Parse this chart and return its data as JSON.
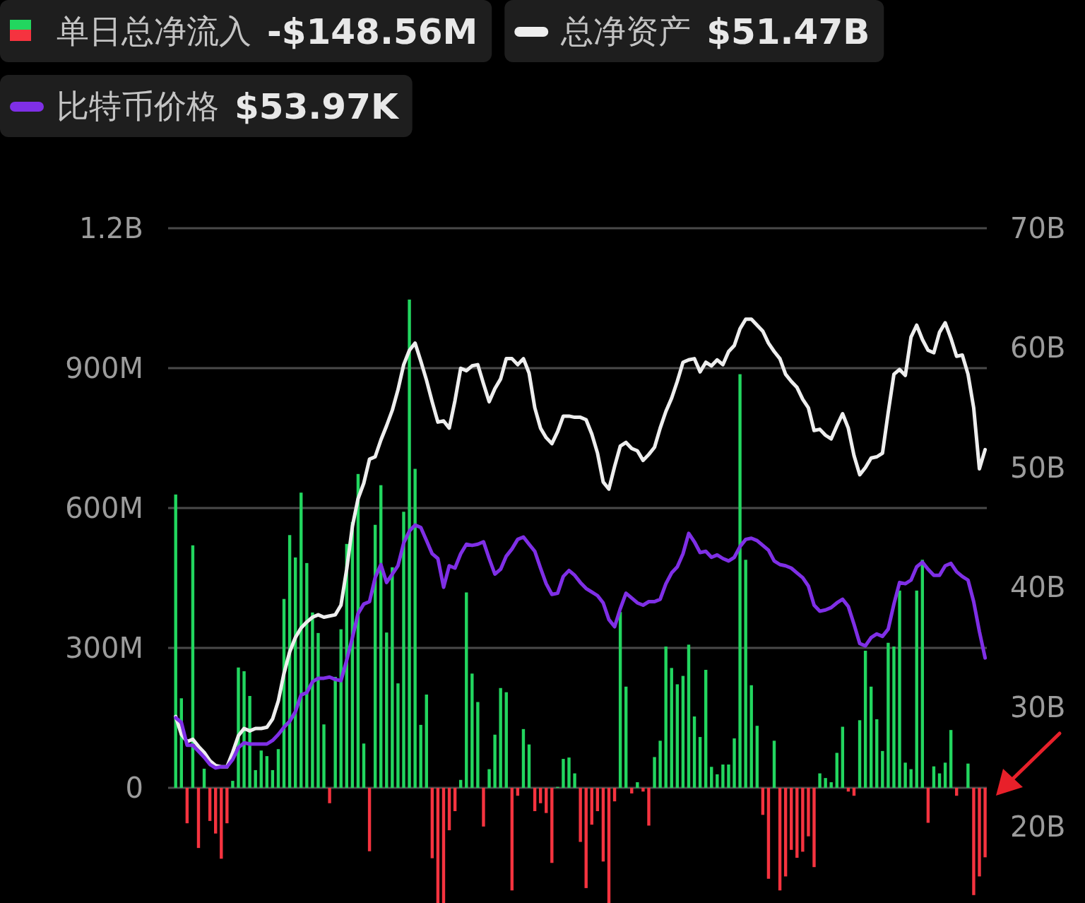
{
  "chart_data": {
    "type": "bar",
    "legend": "top",
    "grid": "y",
    "categories": [
      null,
      null,
      null,
      null,
      null,
      null,
      null,
      null,
      null,
      null,
      null,
      null,
      null,
      null,
      null,
      null,
      null,
      null,
      null,
      null,
      null,
      null,
      null,
      null,
      null,
      null,
      null,
      null,
      null,
      null,
      null,
      null,
      null,
      null,
      null,
      null,
      null,
      null,
      null,
      null,
      null,
      null,
      null,
      null,
      null,
      null,
      null,
      null,
      null,
      null,
      null,
      null,
      null,
      null,
      null,
      null,
      null,
      null,
      null,
      null,
      null,
      null,
      null,
      null,
      null,
      null,
      null,
      null,
      null,
      null,
      null,
      null,
      null,
      null,
      null,
      null,
      null,
      null,
      null,
      null,
      null,
      null,
      null,
      null,
      null,
      null,
      null,
      null,
      null,
      null,
      null,
      null,
      null,
      null,
      null,
      null,
      null,
      null,
      null,
      null,
      null,
      null,
      null,
      null,
      null,
      null,
      null,
      null,
      null,
      null,
      null,
      null,
      null,
      null,
      null,
      null,
      null,
      null,
      null,
      null,
      null,
      null,
      null,
      null,
      null,
      null,
      null,
      null,
      null,
      null,
      null,
      null,
      null,
      null,
      null,
      null,
      null,
      null,
      null,
      null,
      null,
      null,
      null
    ],
    "ylim": [
      -250000000.0,
      1200000000.0
    ],
    "yticks": [
      {
        "value": 0,
        "label": "0"
      },
      {
        "value": 300000000.0,
        "label": "300M"
      },
      {
        "value": 600000000.0,
        "label": "600M"
      },
      {
        "value": 900000000.0,
        "label": "900M"
      },
      {
        "value": 1200000000.0,
        "label": "1.2B"
      }
    ],
    "y2lim": [
      13.5,
      70
    ],
    "y2ticks": [
      {
        "value": 20,
        "label": "20B"
      },
      {
        "value": 30,
        "label": "30B"
      },
      {
        "value": 40,
        "label": "40B"
      },
      {
        "value": 50,
        "label": "50B"
      },
      {
        "value": 60,
        "label": "60B"
      },
      {
        "value": 70,
        "label": "70B"
      }
    ],
    "annotations": [
      "-$148.56M",
      "$51.47B",
      "$53.97K"
    ],
    "series": [
      {
        "name": "单日总净流入",
        "values": [
          629000000.0,
          192000000.0,
          -76000000.0,
          520000000.0,
          -129000000.0,
          41000000.0,
          -71000000.0,
          -98000000.0,
          -152000000.0,
          -76000000.0,
          15000000.0,
          258000000.0,
          250000000.0,
          197000000.0,
          38000000.0,
          80000000.0,
          68000000.0,
          38000000.0,
          83000000.0,
          405000000.0,
          542000000.0,
          494000000.0,
          633000000.0,
          482000000.0,
          376000000.0,
          332000000.0,
          136000000.0,
          -33000000.0,
          238000000.0,
          340000000.0,
          523000000.0,
          570000000.0,
          673000000.0,
          95000000.0,
          -136000000.0,
          564000000.0,
          649000000.0,
          333000000.0,
          473000000.0,
          224000000.0,
          592000000.0,
          1047000000.0,
          684000000.0,
          135000000.0,
          200000000.0,
          -151000000.0,
          -247000000.0,
          -247000000.0,
          -91000000.0,
          -50000000.0,
          17000000.0,
          419000000.0,
          245000000.0,
          184000000.0,
          -83000000.0,
          40000000.0,
          114000000.0,
          214000000.0,
          205000000.0,
          -220000000.0,
          -17000000.0,
          126000000.0,
          93000000.0,
          -50000000.0,
          -33000000.0,
          -54000000.0,
          -161000000.0,
          2000000.0,
          62000000.0,
          65000000.0,
          31000000.0,
          -116000000.0,
          -215000000.0,
          -79000000.0,
          -50000000.0,
          -158000000.0,
          -247000000.0,
          -29000000.0,
          377000000.0,
          217000000.0,
          -12000000.0,
          12000000.0,
          -8000000.0,
          -81000000.0,
          66000000.0,
          101000000.0,
          303000000.0,
          257000000.0,
          222000000.0,
          240000000.0,
          307000000.0,
          153000000.0,
          109000000.0,
          253000000.0,
          45000000.0,
          29000000.0,
          50000000.0,
          50000000.0,
          106000000.0,
          887000000.0,
          489000000.0,
          220000000.0,
          133000000.0,
          -58000000.0,
          -195000000.0,
          101000000.0,
          -220000000.0,
          -190000000.0,
          -133000000.0,
          -150000000.0,
          -137000000.0,
          -104000000.0,
          -170000000.0,
          31000000.0,
          21000000.0,
          12000000.0,
          75000000.0,
          131000000.0,
          -8000000.0,
          -17000000.0,
          145000000.0,
          294000000.0,
          217000000.0,
          147000000.0,
          79000000.0,
          311000000.0,
          303000000.0,
          423000000.0,
          54000000.0,
          40000000.0,
          423000000.0,
          489000000.0,
          -75000000.0,
          46000000.0,
          31000000.0,
          54000000.0,
          124000000.0,
          -17000000.0,
          null,
          52000000.0,
          -230000000.0,
          -190000000.0,
          -149000000.0
        ],
        "colors": [
          "#22d65f",
          "#22d65f",
          "#f5333f",
          "#22d65f",
          "#f5333f",
          "#22d65f",
          "#f5333f",
          "#f5333f",
          "#f5333f",
          "#f5333f",
          "#22d65f",
          "#22d65f",
          "#22d65f",
          "#22d65f",
          "#22d65f",
          "#22d65f",
          "#22d65f",
          "#22d65f",
          "#22d65f",
          "#22d65f",
          "#22d65f",
          "#22d65f",
          "#22d65f",
          "#22d65f",
          "#22d65f",
          "#22d65f",
          "#22d65f",
          "#f5333f",
          "#22d65f",
          "#22d65f",
          "#22d65f",
          "#22d65f",
          "#22d65f",
          "#22d65f",
          "#f5333f",
          "#22d65f",
          "#22d65f",
          "#22d65f",
          "#22d65f",
          "#22d65f",
          "#22d65f",
          "#22d65f",
          "#22d65f",
          "#22d65f",
          "#22d65f",
          "#f5333f",
          "#f5333f",
          "#f5333f",
          "#f5333f",
          "#f5333f",
          "#22d65f",
          "#22d65f",
          "#22d65f",
          "#22d65f",
          "#f5333f",
          "#22d65f",
          "#22d65f",
          "#22d65f",
          "#22d65f",
          "#f5333f",
          "#f5333f",
          "#22d65f",
          "#22d65f",
          "#f5333f",
          "#f5333f",
          "#f5333f",
          "#f5333f",
          "#22d65f",
          "#22d65f",
          "#22d65f",
          "#22d65f",
          "#f5333f",
          "#f5333f",
          "#f5333f",
          "#f5333f",
          "#f5333f",
          "#f5333f",
          "#f5333f",
          "#22d65f",
          "#22d65f",
          "#f5333f",
          "#22d65f",
          "#f5333f",
          "#f5333f",
          "#22d65f",
          "#22d65f",
          "#22d65f",
          "#22d65f",
          "#22d65f",
          "#22d65f",
          "#22d65f",
          "#22d65f",
          "#22d65f",
          "#22d65f",
          "#22d65f",
          "#22d65f",
          "#22d65f",
          "#22d65f",
          "#22d65f",
          "#22d65f",
          "#22d65f",
          "#22d65f",
          "#22d65f",
          "#f5333f",
          "#f5333f",
          "#22d65f",
          "#f5333f",
          "#f5333f",
          "#f5333f",
          "#f5333f",
          "#f5333f",
          "#f5333f",
          "#f5333f",
          "#22d65f",
          "#22d65f",
          "#22d65f",
          "#22d65f",
          "#22d65f",
          "#f5333f",
          "#f5333f",
          "#22d65f",
          "#22d65f",
          "#22d65f",
          "#22d65f",
          "#22d65f",
          "#22d65f",
          "#22d65f",
          "#22d65f",
          "#22d65f",
          "#22d65f",
          "#22d65f",
          "#22d65f",
          "#f5333f",
          "#22d65f",
          "#22d65f",
          "#22d65f",
          "#22d65f",
          "#f5333f",
          "#22d65f",
          "#22d65f",
          "#f5333f",
          "#f5333f",
          "#f5333f"
        ]
      },
      {
        "name": "总净资产",
        "type": "line",
        "axis": "y2",
        "color": "#eeeeee",
        "values": [
          29.2,
          27.7,
          27.1,
          27.3,
          26.7,
          26.2,
          25.5,
          25.1,
          25.0,
          25.0,
          26.2,
          27.6,
          28.2,
          28.0,
          28.2,
          28.2,
          28.3,
          29.0,
          30.5,
          32.8,
          34.6,
          35.8,
          36.6,
          37.1,
          37.5,
          37.7,
          37.5,
          37.6,
          37.7,
          38.5,
          41.5,
          45.1,
          47.4,
          48.7,
          50.7,
          50.9,
          52.3,
          53.5,
          54.8,
          56.5,
          58.6,
          59.8,
          60.4,
          58.9,
          57.3,
          55.5,
          53.8,
          53.9,
          53.3,
          55.6,
          58.3,
          58.1,
          58.5,
          58.6,
          57.0,
          55.5,
          56.6,
          57.4,
          59.1,
          59.1,
          58.6,
          59.1,
          57.9,
          55.0,
          53.3,
          52.5,
          52.0,
          53.0,
          54.3,
          54.3,
          54.2,
          54.2,
          54.0,
          52.8,
          51.2,
          48.8,
          48.2,
          50.1,
          51.8,
          52.1,
          51.6,
          51.4,
          50.6,
          51.1,
          51.7,
          53.3,
          54.7,
          55.8,
          57.2,
          58.8,
          59.0,
          59.1,
          58.0,
          58.8,
          58.5,
          59.0,
          58.6,
          59.7,
          60.2,
          61.6,
          62.4,
          62.4,
          61.9,
          61.4,
          60.4,
          59.7,
          59.1,
          57.8,
          57.2,
          56.7,
          55.7,
          55.0,
          53.1,
          53.2,
          52.7,
          52.4,
          53.5,
          54.5,
          53.3,
          51.0,
          49.4,
          50.0,
          50.8,
          50.9,
          51.2,
          54.6,
          57.8,
          58.2,
          57.7,
          60.9,
          61.9,
          60.7,
          59.8,
          59.6,
          61.3,
          62.1,
          60.8,
          59.3,
          59.4,
          57.8,
          55.0,
          49.9,
          51.5
        ]
      },
      {
        "name": "比特币价格",
        "type": "line",
        "axis": "y2",
        "color": "#7f2fe6",
        "values": [
          29.1,
          28.7,
          26.8,
          26.8,
          26.3,
          25.8,
          25.2,
          24.9,
          25.0,
          25.0,
          25.6,
          26.6,
          27.0,
          26.9,
          26.9,
          26.9,
          26.9,
          27.2,
          27.7,
          28.3,
          28.8,
          29.6,
          31.0,
          31.2,
          32.1,
          32.4,
          32.4,
          32.5,
          32.3,
          32.2,
          33.9,
          35.8,
          37.8,
          38.6,
          38.8,
          40.8,
          41.9,
          40.4,
          41.1,
          41.8,
          43.7,
          44.7,
          45.2,
          45.0,
          43.9,
          42.8,
          42.4,
          40.0,
          41.8,
          41.6,
          42.8,
          43.6,
          43.5,
          43.6,
          43.8,
          42.4,
          41.1,
          41.5,
          42.6,
          43.2,
          44.0,
          44.2,
          43.6,
          43.0,
          41.6,
          40.3,
          39.4,
          39.5,
          40.9,
          41.4,
          41.0,
          40.4,
          39.9,
          39.6,
          39.3,
          38.7,
          37.3,
          36.7,
          38.2,
          39.5,
          39.1,
          38.7,
          38.5,
          38.8,
          38.8,
          39.0,
          40.3,
          41.2,
          41.7,
          42.8,
          44.5,
          43.8,
          42.9,
          43.0,
          42.5,
          42.7,
          42.4,
          42.2,
          42.5,
          43.4,
          44.0,
          44.1,
          43.9,
          43.5,
          43.1,
          42.2,
          41.9,
          41.8,
          41.6,
          41.2,
          40.8,
          40.1,
          38.5,
          38.0,
          38.1,
          38.3,
          38.7,
          39.0,
          38.4,
          36.9,
          35.3,
          35.1,
          35.8,
          36.1,
          35.9,
          36.5,
          38.6,
          40.4,
          40.3,
          40.6,
          41.7,
          42.1,
          41.5,
          41.0,
          41.0,
          41.8,
          42.0,
          41.3,
          40.9,
          40.6,
          38.8,
          36.3,
          34.1
        ]
      }
    ]
  }
}
